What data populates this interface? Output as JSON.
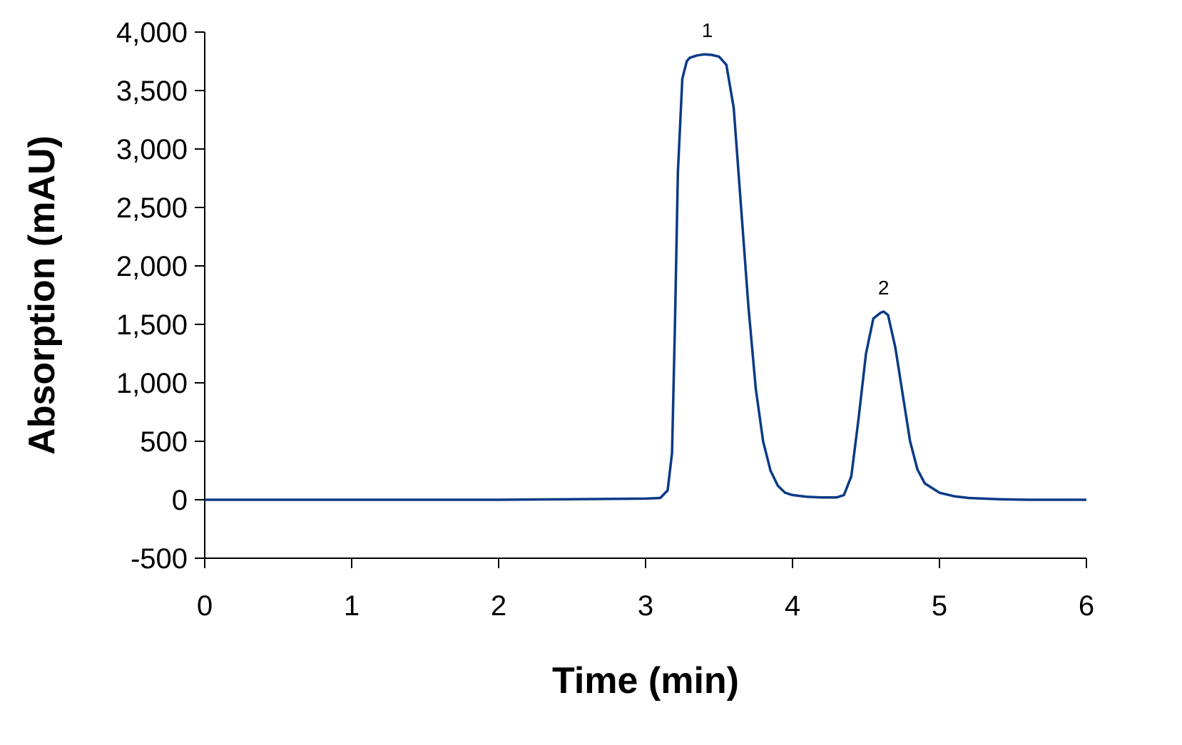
{
  "chart_data": {
    "type": "line",
    "xlabel": "Time (min)",
    "ylabel": "Absorption (mAU)",
    "xlim": [
      0,
      6
    ],
    "ylim": [
      -500,
      4000
    ],
    "x_ticks": [
      0,
      1,
      2,
      3,
      4,
      5,
      6
    ],
    "x_tick_labels": [
      "0",
      "1",
      "2",
      "3",
      "4",
      "5",
      "6"
    ],
    "y_ticks": [
      -500,
      0,
      500,
      1000,
      1500,
      2000,
      2500,
      3000,
      3500,
      4000
    ],
    "y_tick_labels": [
      "-500",
      "0",
      "500",
      "1,000",
      "1,500",
      "2,000",
      "2,500",
      "3,000",
      "3,500",
      "4,000"
    ],
    "grid": false,
    "legend": "none",
    "line_color": "#0B3A86",
    "series": [
      {
        "x": [
          0,
          0.5,
          1,
          1.5,
          2,
          2.5,
          3,
          3.1,
          3.15,
          3.18,
          3.2,
          3.22,
          3.25,
          3.28,
          3.3,
          3.35,
          3.4,
          3.45,
          3.5,
          3.55,
          3.6,
          3.65,
          3.7,
          3.75,
          3.8,
          3.85,
          3.9,
          3.95,
          4.0,
          4.1,
          4.2,
          4.3,
          4.35,
          4.4,
          4.45,
          4.5,
          4.55,
          4.6,
          4.62,
          4.65,
          4.7,
          4.75,
          4.8,
          4.85,
          4.9,
          5.0,
          5.1,
          5.2,
          5.3,
          5.4,
          5.6,
          6.0
        ],
        "y": [
          0,
          0,
          0,
          0,
          0,
          5,
          10,
          15,
          80,
          400,
          1500,
          2800,
          3600,
          3750,
          3780,
          3800,
          3810,
          3805,
          3790,
          3720,
          3350,
          2500,
          1650,
          950,
          500,
          250,
          120,
          60,
          40,
          25,
          20,
          20,
          40,
          200,
          700,
          1250,
          1550,
          1600,
          1610,
          1580,
          1300,
          900,
          500,
          260,
          140,
          60,
          30,
          15,
          10,
          5,
          0,
          0
        ]
      }
    ],
    "annotations": [
      {
        "text": "1",
        "x": 3.42,
        "y": 3810
      },
      {
        "text": "2",
        "x": 4.62,
        "y": 1610
      }
    ]
  }
}
